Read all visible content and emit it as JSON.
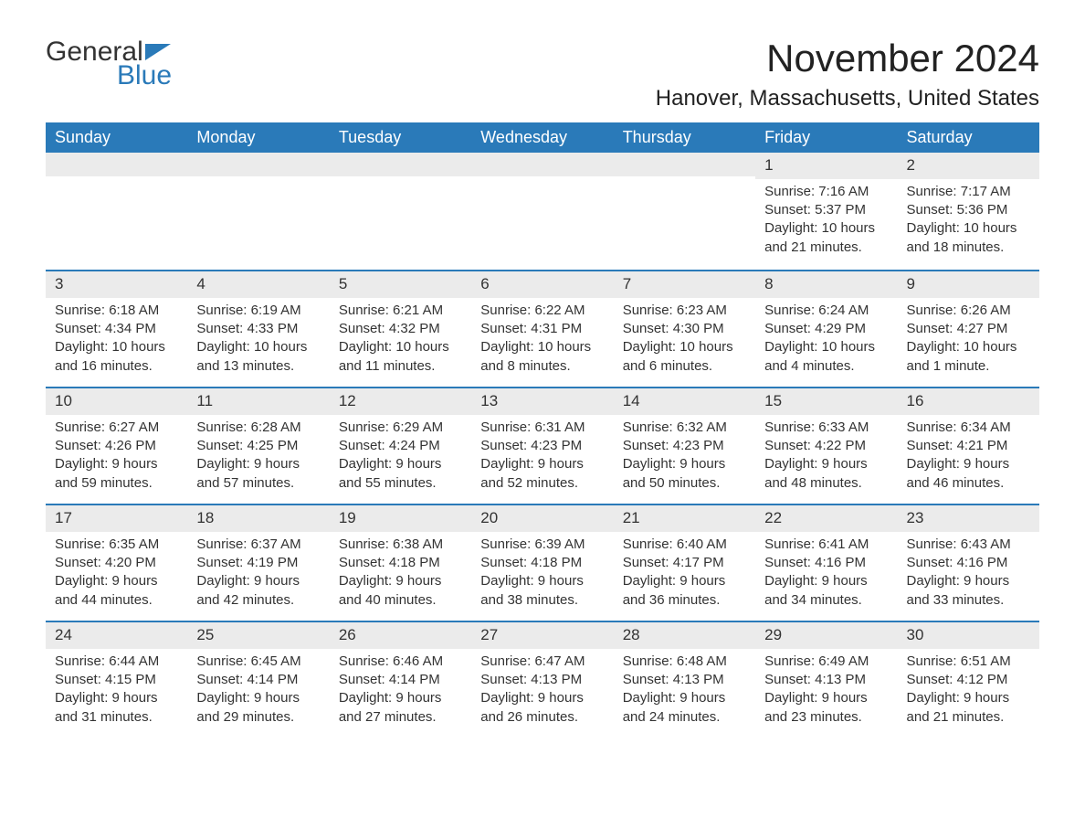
{
  "brand": {
    "word1": "General",
    "word2": "Blue"
  },
  "title": "November 2024",
  "location": "Hanover, Massachusetts, United States",
  "colors": {
    "brand_blue": "#2a7ab9",
    "header_bg": "#2a7ab9",
    "header_text": "#ffffff",
    "daynum_bg": "#ebebeb",
    "text": "#333333",
    "page_bg": "#ffffff",
    "week_border": "#2a7ab9"
  },
  "weekdays": [
    "Sunday",
    "Monday",
    "Tuesday",
    "Wednesday",
    "Thursday",
    "Friday",
    "Saturday"
  ],
  "weeks": [
    [
      null,
      null,
      null,
      null,
      null,
      {
        "num": "1",
        "sunrise": "Sunrise: 7:16 AM",
        "sunset": "Sunset: 5:37 PM",
        "daylight1": "Daylight: 10 hours",
        "daylight2": "and 21 minutes."
      },
      {
        "num": "2",
        "sunrise": "Sunrise: 7:17 AM",
        "sunset": "Sunset: 5:36 PM",
        "daylight1": "Daylight: 10 hours",
        "daylight2": "and 18 minutes."
      }
    ],
    [
      {
        "num": "3",
        "sunrise": "Sunrise: 6:18 AM",
        "sunset": "Sunset: 4:34 PM",
        "daylight1": "Daylight: 10 hours",
        "daylight2": "and 16 minutes."
      },
      {
        "num": "4",
        "sunrise": "Sunrise: 6:19 AM",
        "sunset": "Sunset: 4:33 PM",
        "daylight1": "Daylight: 10 hours",
        "daylight2": "and 13 minutes."
      },
      {
        "num": "5",
        "sunrise": "Sunrise: 6:21 AM",
        "sunset": "Sunset: 4:32 PM",
        "daylight1": "Daylight: 10 hours",
        "daylight2": "and 11 minutes."
      },
      {
        "num": "6",
        "sunrise": "Sunrise: 6:22 AM",
        "sunset": "Sunset: 4:31 PM",
        "daylight1": "Daylight: 10 hours",
        "daylight2": "and 8 minutes."
      },
      {
        "num": "7",
        "sunrise": "Sunrise: 6:23 AM",
        "sunset": "Sunset: 4:30 PM",
        "daylight1": "Daylight: 10 hours",
        "daylight2": "and 6 minutes."
      },
      {
        "num": "8",
        "sunrise": "Sunrise: 6:24 AM",
        "sunset": "Sunset: 4:29 PM",
        "daylight1": "Daylight: 10 hours",
        "daylight2": "and 4 minutes."
      },
      {
        "num": "9",
        "sunrise": "Sunrise: 6:26 AM",
        "sunset": "Sunset: 4:27 PM",
        "daylight1": "Daylight: 10 hours",
        "daylight2": "and 1 minute."
      }
    ],
    [
      {
        "num": "10",
        "sunrise": "Sunrise: 6:27 AM",
        "sunset": "Sunset: 4:26 PM",
        "daylight1": "Daylight: 9 hours",
        "daylight2": "and 59 minutes."
      },
      {
        "num": "11",
        "sunrise": "Sunrise: 6:28 AM",
        "sunset": "Sunset: 4:25 PM",
        "daylight1": "Daylight: 9 hours",
        "daylight2": "and 57 minutes."
      },
      {
        "num": "12",
        "sunrise": "Sunrise: 6:29 AM",
        "sunset": "Sunset: 4:24 PM",
        "daylight1": "Daylight: 9 hours",
        "daylight2": "and 55 minutes."
      },
      {
        "num": "13",
        "sunrise": "Sunrise: 6:31 AM",
        "sunset": "Sunset: 4:23 PM",
        "daylight1": "Daylight: 9 hours",
        "daylight2": "and 52 minutes."
      },
      {
        "num": "14",
        "sunrise": "Sunrise: 6:32 AM",
        "sunset": "Sunset: 4:23 PM",
        "daylight1": "Daylight: 9 hours",
        "daylight2": "and 50 minutes."
      },
      {
        "num": "15",
        "sunrise": "Sunrise: 6:33 AM",
        "sunset": "Sunset: 4:22 PM",
        "daylight1": "Daylight: 9 hours",
        "daylight2": "and 48 minutes."
      },
      {
        "num": "16",
        "sunrise": "Sunrise: 6:34 AM",
        "sunset": "Sunset: 4:21 PM",
        "daylight1": "Daylight: 9 hours",
        "daylight2": "and 46 minutes."
      }
    ],
    [
      {
        "num": "17",
        "sunrise": "Sunrise: 6:35 AM",
        "sunset": "Sunset: 4:20 PM",
        "daylight1": "Daylight: 9 hours",
        "daylight2": "and 44 minutes."
      },
      {
        "num": "18",
        "sunrise": "Sunrise: 6:37 AM",
        "sunset": "Sunset: 4:19 PM",
        "daylight1": "Daylight: 9 hours",
        "daylight2": "and 42 minutes."
      },
      {
        "num": "19",
        "sunrise": "Sunrise: 6:38 AM",
        "sunset": "Sunset: 4:18 PM",
        "daylight1": "Daylight: 9 hours",
        "daylight2": "and 40 minutes."
      },
      {
        "num": "20",
        "sunrise": "Sunrise: 6:39 AM",
        "sunset": "Sunset: 4:18 PM",
        "daylight1": "Daylight: 9 hours",
        "daylight2": "and 38 minutes."
      },
      {
        "num": "21",
        "sunrise": "Sunrise: 6:40 AM",
        "sunset": "Sunset: 4:17 PM",
        "daylight1": "Daylight: 9 hours",
        "daylight2": "and 36 minutes."
      },
      {
        "num": "22",
        "sunrise": "Sunrise: 6:41 AM",
        "sunset": "Sunset: 4:16 PM",
        "daylight1": "Daylight: 9 hours",
        "daylight2": "and 34 minutes."
      },
      {
        "num": "23",
        "sunrise": "Sunrise: 6:43 AM",
        "sunset": "Sunset: 4:16 PM",
        "daylight1": "Daylight: 9 hours",
        "daylight2": "and 33 minutes."
      }
    ],
    [
      {
        "num": "24",
        "sunrise": "Sunrise: 6:44 AM",
        "sunset": "Sunset: 4:15 PM",
        "daylight1": "Daylight: 9 hours",
        "daylight2": "and 31 minutes."
      },
      {
        "num": "25",
        "sunrise": "Sunrise: 6:45 AM",
        "sunset": "Sunset: 4:14 PM",
        "daylight1": "Daylight: 9 hours",
        "daylight2": "and 29 minutes."
      },
      {
        "num": "26",
        "sunrise": "Sunrise: 6:46 AM",
        "sunset": "Sunset: 4:14 PM",
        "daylight1": "Daylight: 9 hours",
        "daylight2": "and 27 minutes."
      },
      {
        "num": "27",
        "sunrise": "Sunrise: 6:47 AM",
        "sunset": "Sunset: 4:13 PM",
        "daylight1": "Daylight: 9 hours",
        "daylight2": "and 26 minutes."
      },
      {
        "num": "28",
        "sunrise": "Sunrise: 6:48 AM",
        "sunset": "Sunset: 4:13 PM",
        "daylight1": "Daylight: 9 hours",
        "daylight2": "and 24 minutes."
      },
      {
        "num": "29",
        "sunrise": "Sunrise: 6:49 AM",
        "sunset": "Sunset: 4:13 PM",
        "daylight1": "Daylight: 9 hours",
        "daylight2": "and 23 minutes."
      },
      {
        "num": "30",
        "sunrise": "Sunrise: 6:51 AM",
        "sunset": "Sunset: 4:12 PM",
        "daylight1": "Daylight: 9 hours",
        "daylight2": "and 21 minutes."
      }
    ]
  ]
}
